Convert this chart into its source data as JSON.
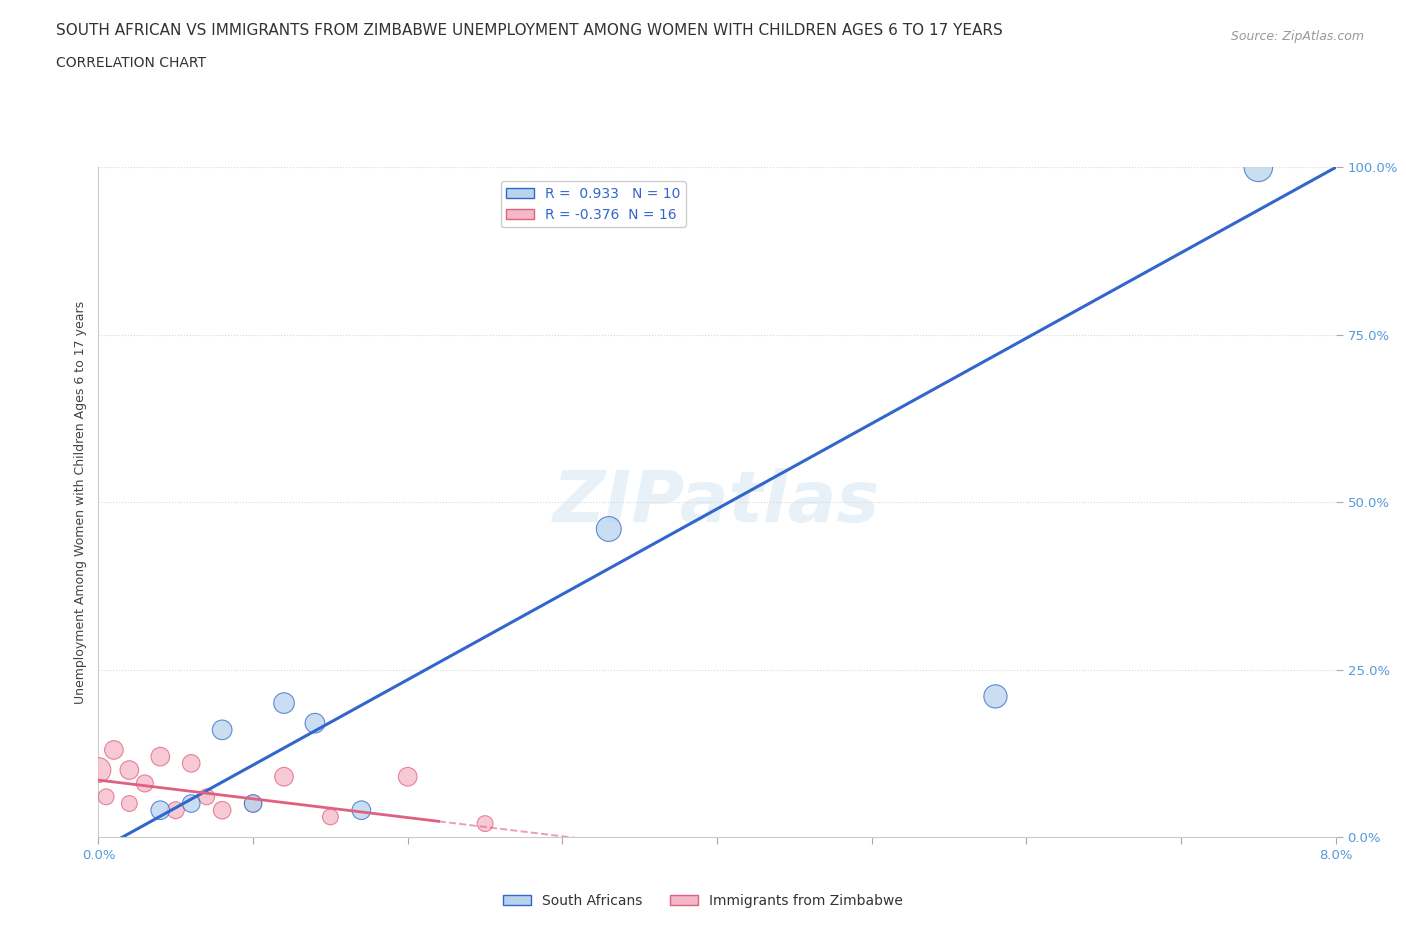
{
  "title": "SOUTH AFRICAN VS IMMIGRANTS FROM ZIMBABWE UNEMPLOYMENT AMONG WOMEN WITH CHILDREN AGES 6 TO 17 YEARS",
  "subtitle": "CORRELATION CHART",
  "source": "Source: ZipAtlas.com",
  "ylabel": "Unemployment Among Women with Children Ages 6 to 17 years",
  "xlim": [
    0.0,
    0.08
  ],
  "ylim": [
    0.0,
    1.0
  ],
  "xticks": [
    0.0,
    0.01,
    0.02,
    0.03,
    0.04,
    0.05,
    0.06,
    0.07,
    0.08
  ],
  "xticklabels": [
    "0.0%",
    "",
    "",
    "",
    "",
    "",
    "",
    "",
    "8.0%"
  ],
  "yticks": [
    0.0,
    0.25,
    0.5,
    0.75,
    1.0
  ],
  "yticklabels": [
    "0.0%",
    "25.0%",
    "50.0%",
    "75.0%",
    "100.0%"
  ],
  "blue_R": 0.933,
  "blue_N": 10,
  "pink_R": -0.376,
  "pink_N": 16,
  "blue_color": "#b8d4ec",
  "blue_line_color": "#3366cc",
  "pink_color": "#f4b8c8",
  "pink_line_color": "#e06080",
  "watermark": "ZIPatlas",
  "blue_scatter_x": [
    0.004,
    0.006,
    0.008,
    0.01,
    0.012,
    0.014,
    0.017,
    0.033,
    0.058,
    0.075
  ],
  "blue_scatter_y": [
    0.04,
    0.05,
    0.16,
    0.05,
    0.2,
    0.17,
    0.04,
    0.46,
    0.21,
    1.0
  ],
  "blue_scatter_sizes": [
    180,
    160,
    200,
    160,
    220,
    200,
    180,
    320,
    280,
    420
  ],
  "pink_scatter_x": [
    0.0,
    0.0005,
    0.001,
    0.002,
    0.002,
    0.003,
    0.004,
    0.005,
    0.006,
    0.007,
    0.008,
    0.01,
    0.012,
    0.015,
    0.02,
    0.025
  ],
  "pink_scatter_y": [
    0.1,
    0.06,
    0.13,
    0.05,
    0.1,
    0.08,
    0.12,
    0.04,
    0.11,
    0.06,
    0.04,
    0.05,
    0.09,
    0.03,
    0.09,
    0.02
  ],
  "pink_scatter_sizes": [
    320,
    130,
    180,
    130,
    180,
    150,
    180,
    150,
    160,
    130,
    160,
    150,
    180,
    130,
    180,
    130
  ],
  "blue_line_x0": 0.0,
  "blue_line_y0": -0.02,
  "blue_line_x1": 0.08,
  "blue_line_y1": 1.0,
  "pink_line_x0": 0.0,
  "pink_line_y0": 0.085,
  "pink_line_x1_solid": 0.022,
  "pink_line_x1_dash": 0.08,
  "pink_slope": -2.8,
  "grid_color": "#d8d8d8",
  "background_color": "#ffffff",
  "title_fontsize": 11,
  "subtitle_fontsize": 10,
  "source_fontsize": 9,
  "axis_label_fontsize": 9,
  "tick_fontsize": 9.5,
  "tick_color": "#5599dd",
  "legend_fontsize": 10
}
